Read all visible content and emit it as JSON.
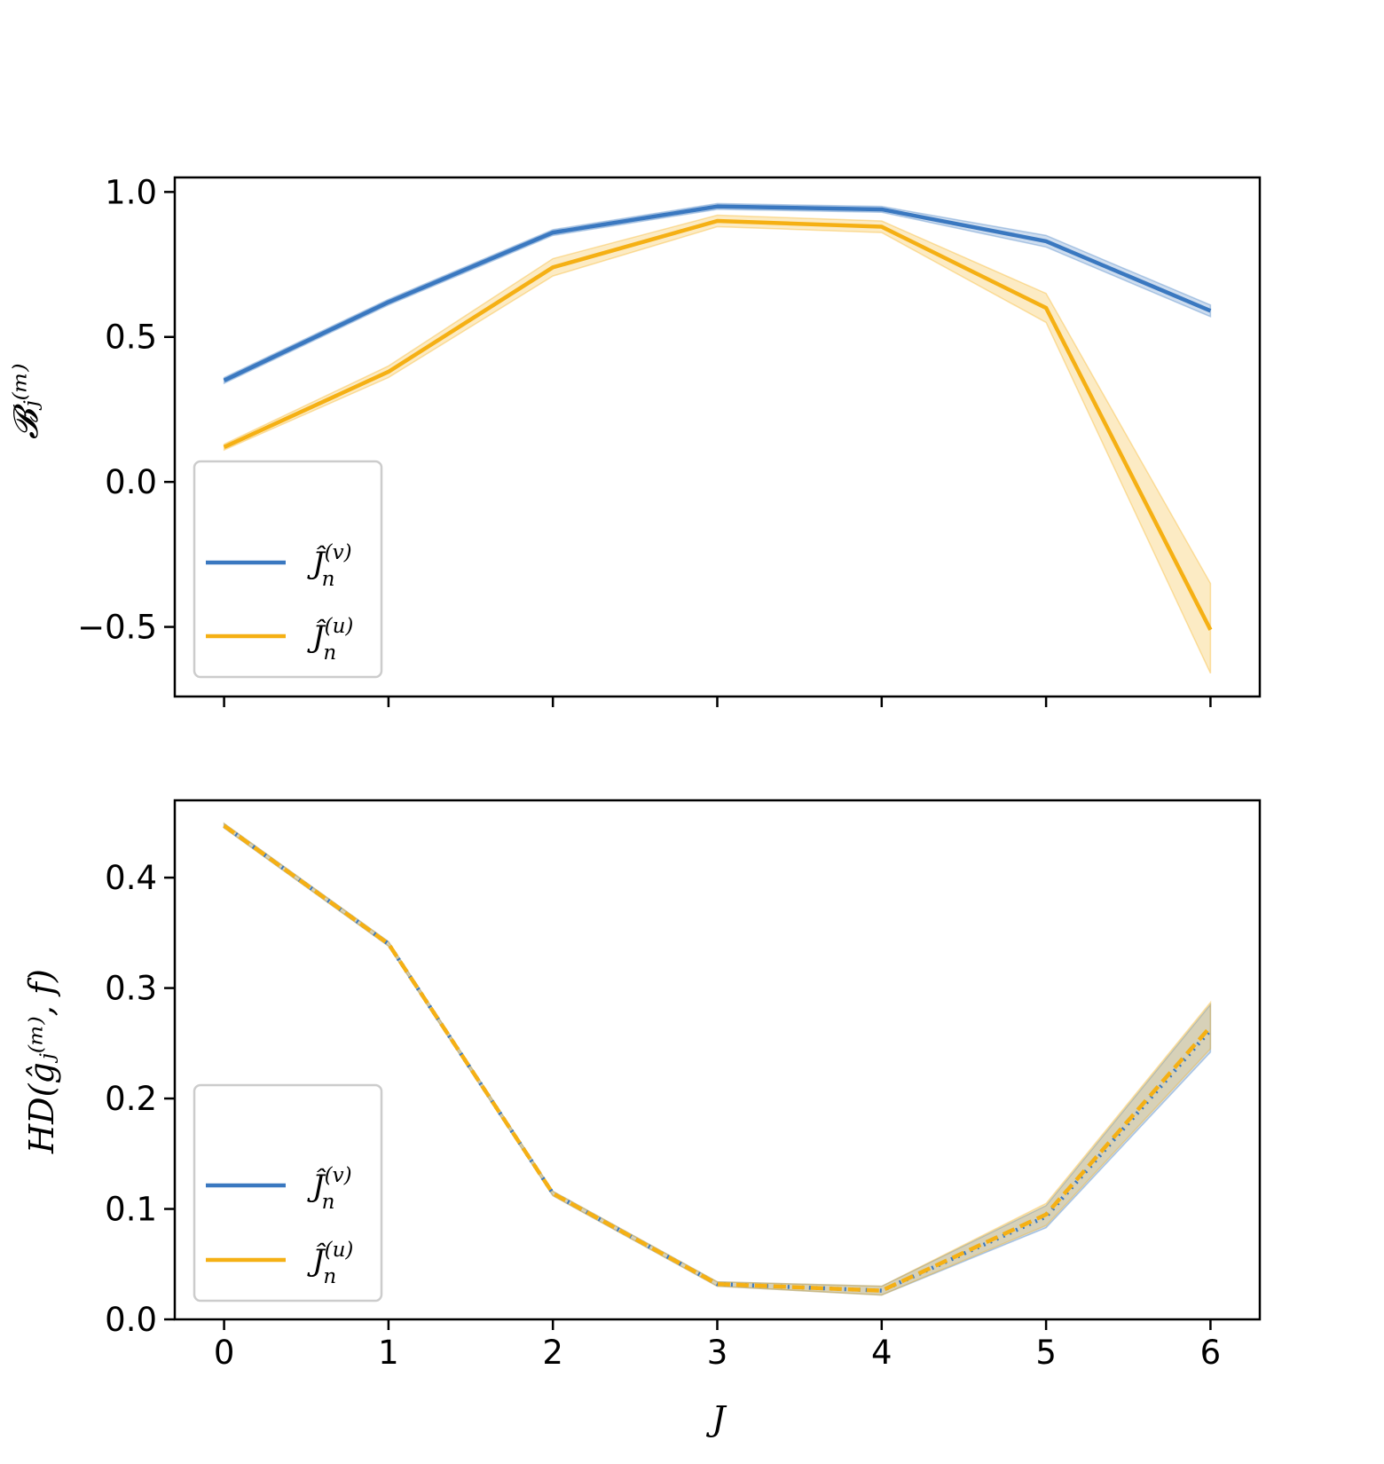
{
  "chart_data": [
    {
      "type": "line",
      "ylabel": "𝓑ⱼ⁽ᵐ⁾",
      "xlim": [
        -0.3,
        6.3
      ],
      "ylim": [
        -0.74,
        1.05
      ],
      "x_ticks": [
        0,
        1,
        2,
        3,
        4,
        5,
        6
      ],
      "x_tick_labels_visible": false,
      "y_ticks": [
        -0.5,
        0.0,
        0.5,
        1.0
      ],
      "y_tick_labels": [
        "−0.5",
        "0.0",
        "0.5",
        "1.0"
      ],
      "grid": false,
      "legend": {
        "placement": "lower-left"
      },
      "series": [
        {
          "legend_label": {
            "base": "Ĵ",
            "sup": "(v)",
            "sub": "n"
          },
          "color": "#3a78c0",
          "line_style": "solid",
          "x": [
            0,
            1,
            2,
            3,
            4,
            5,
            6
          ],
          "y": [
            0.35,
            0.62,
            0.86,
            0.95,
            0.94,
            0.83,
            0.59
          ],
          "band_lower": [
            0.34,
            0.61,
            0.85,
            0.94,
            0.93,
            0.81,
            0.57
          ],
          "band_upper": [
            0.36,
            0.63,
            0.87,
            0.96,
            0.95,
            0.85,
            0.61
          ]
        },
        {
          "legend_label": {
            "base": "Ĵ",
            "sup": "(u)",
            "sub": "n"
          },
          "color": "#f5b014",
          "line_style": "solid",
          "x": [
            0,
            1,
            2,
            3,
            4,
            5,
            6
          ],
          "y": [
            0.12,
            0.38,
            0.74,
            0.9,
            0.88,
            0.6,
            -0.51
          ],
          "band_lower": [
            0.11,
            0.36,
            0.71,
            0.88,
            0.86,
            0.55,
            -0.66
          ],
          "band_upper": [
            0.13,
            0.4,
            0.77,
            0.92,
            0.9,
            0.65,
            -0.35
          ]
        }
      ]
    },
    {
      "type": "line",
      "xlabel": "J",
      "ylabel": "HD(ĝⱼ⁽ᵐ⁾, f)",
      "xlim": [
        -0.3,
        6.3
      ],
      "ylim": [
        0.0,
        0.47
      ],
      "x_ticks": [
        0,
        1,
        2,
        3,
        4,
        5,
        6
      ],
      "x_tick_labels": [
        "0",
        "1",
        "2",
        "3",
        "4",
        "5",
        "6"
      ],
      "y_ticks": [
        0.0,
        0.1,
        0.2,
        0.3,
        0.4
      ],
      "y_tick_labels": [
        "0.0",
        "0.1",
        "0.2",
        "0.3",
        "0.4"
      ],
      "grid": false,
      "legend": {
        "placement": "lower-left"
      },
      "series": [
        {
          "legend_label": {
            "base": "Ĵ",
            "sup": "(v)",
            "sub": "n"
          },
          "color": "#3a78c0",
          "line_style": "dotted",
          "x": [
            0,
            1,
            2,
            3,
            4,
            5,
            6
          ],
          "y": [
            0.447,
            0.34,
            0.114,
            0.032,
            0.026,
            0.093,
            0.262
          ],
          "band_lower": [
            0.445,
            0.338,
            0.112,
            0.03,
            0.022,
            0.083,
            0.242
          ],
          "band_upper": [
            0.449,
            0.342,
            0.116,
            0.034,
            0.03,
            0.103,
            0.285
          ]
        },
        {
          "legend_label": {
            "base": "Ĵ",
            "sup": "(u)",
            "sub": "n"
          },
          "color": "#f5b014",
          "line_style": "dashed",
          "x": [
            0,
            1,
            2,
            3,
            4,
            5,
            6
          ],
          "y": [
            0.447,
            0.34,
            0.114,
            0.032,
            0.026,
            0.095,
            0.265
          ],
          "band_lower": [
            0.445,
            0.338,
            0.112,
            0.03,
            0.022,
            0.085,
            0.245
          ],
          "band_upper": [
            0.449,
            0.342,
            0.116,
            0.034,
            0.03,
            0.105,
            0.287
          ]
        }
      ]
    }
  ]
}
